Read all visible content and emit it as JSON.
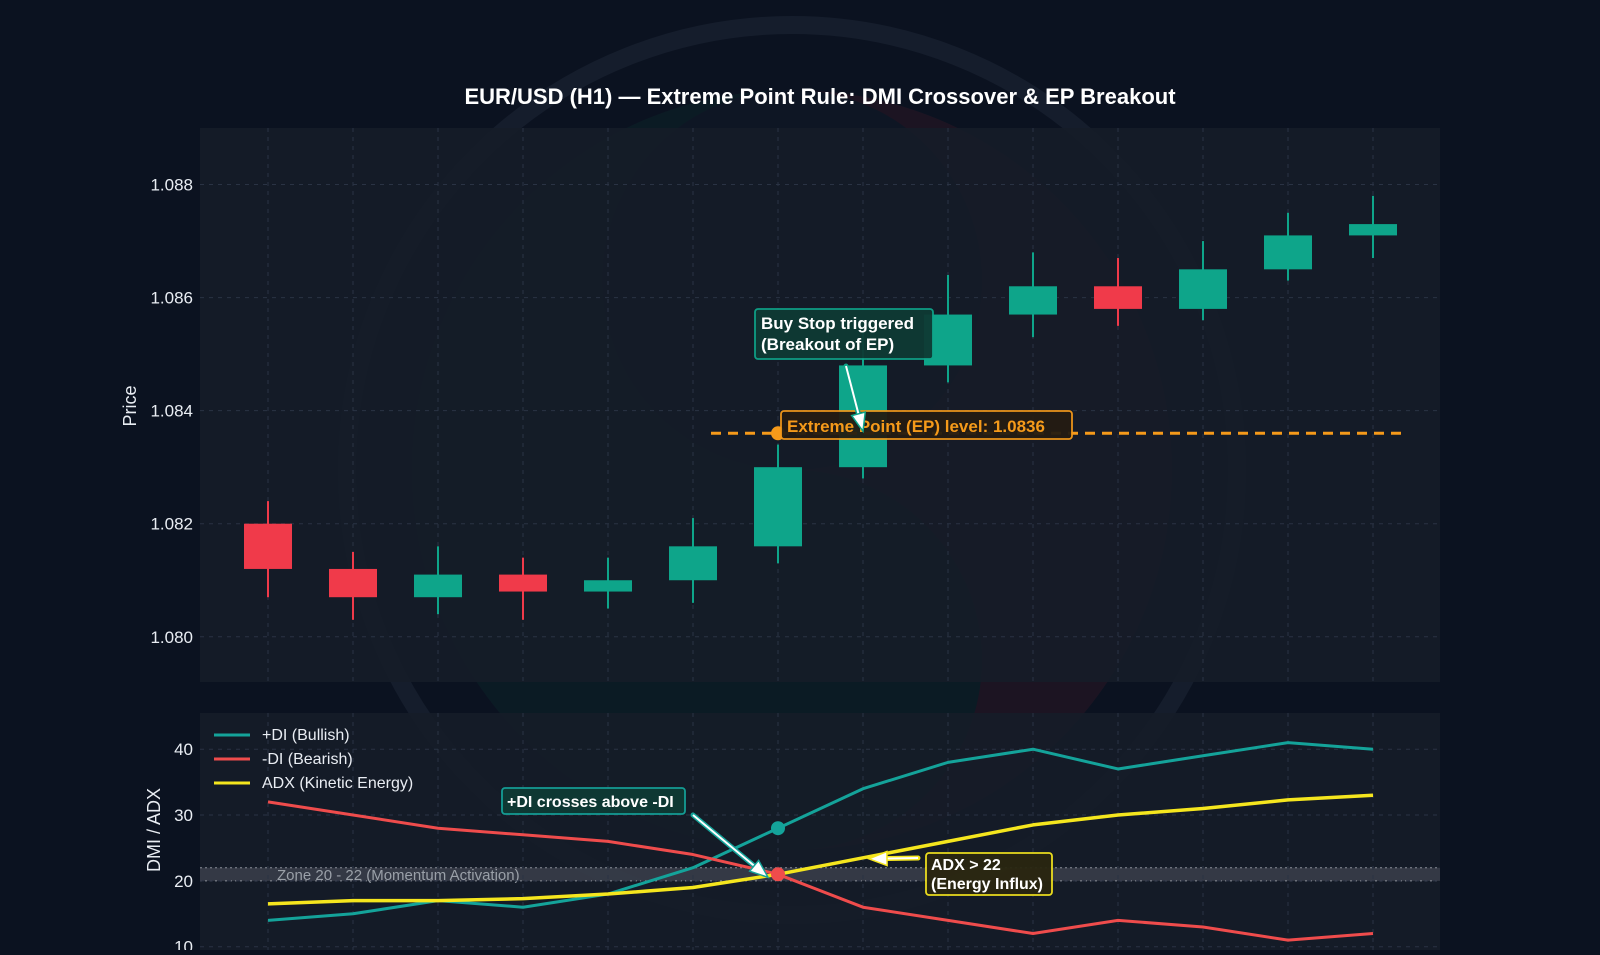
{
  "colors": {
    "page_bg": "#0b1220",
    "panel_bg": "#161c28",
    "bull": "#0ea58a",
    "bear": "#f03a4a",
    "plus_di": "#14a39a",
    "minus_di": "#ef4c4c",
    "adx": "#f5e61e",
    "ep": "#f59a1a",
    "text": "#e9edf3",
    "grid": "#2a3344"
  },
  "chart_data": [
    {
      "type": "candlestick",
      "title": "EUR/USD (H1) — Extreme Point Rule: DMI Crossover & EP Breakout",
      "ylabel": "Price",
      "ylim": [
        1.0792,
        1.089
      ],
      "yticks": [
        "1.080",
        "1.082",
        "1.084",
        "1.086",
        "1.088"
      ],
      "ytick_values": [
        1.08,
        1.082,
        1.084,
        1.086,
        1.088
      ],
      "x": [
        1,
        2,
        3,
        4,
        5,
        6,
        7,
        8,
        9,
        10,
        11,
        12,
        13,
        14
      ],
      "candles": [
        {
          "open": 1.082,
          "high": 1.0824,
          "low": 1.0807,
          "close": 1.0812
        },
        {
          "open": 1.0812,
          "high": 1.0815,
          "low": 1.0803,
          "close": 1.0807
        },
        {
          "open": 1.0807,
          "high": 1.0816,
          "low": 1.0804,
          "close": 1.0811
        },
        {
          "open": 1.0811,
          "high": 1.0814,
          "low": 1.0803,
          "close": 1.0808
        },
        {
          "open": 1.0808,
          "high": 1.0814,
          "low": 1.0805,
          "close": 1.081
        },
        {
          "open": 1.081,
          "high": 1.0821,
          "low": 1.0806,
          "close": 1.0816
        },
        {
          "open": 1.0816,
          "high": 1.0834,
          "low": 1.0813,
          "close": 1.083
        },
        {
          "open": 1.083,
          "high": 1.0854,
          "low": 1.0828,
          "close": 1.0848
        },
        {
          "open": 1.0848,
          "high": 1.0864,
          "low": 1.0845,
          "close": 1.0857
        },
        {
          "open": 1.0857,
          "high": 1.0868,
          "low": 1.0853,
          "close": 1.0862
        },
        {
          "open": 1.0862,
          "high": 1.0867,
          "low": 1.0855,
          "close": 1.0858
        },
        {
          "open": 1.0858,
          "high": 1.087,
          "low": 1.0856,
          "close": 1.0865
        },
        {
          "open": 1.0865,
          "high": 1.0875,
          "low": 1.0863,
          "close": 1.0871
        },
        {
          "open": 1.0871,
          "high": 1.0878,
          "low": 1.0867,
          "close": 1.0873
        }
      ],
      "ep_level": 1.0836,
      "ep_line_x": [
        6,
        14.5
      ],
      "annotations": {
        "ep_label": "Extreme Point (EP) level: 1.0836",
        "ep_point": {
          "x": 7,
          "y": 1.0836
        },
        "buy_stop": "Buy Stop triggered\n(Breakout of EP)",
        "buy_stop_target": {
          "x": 8,
          "y": 1.0836
        }
      },
      "grid": true
    },
    {
      "type": "line",
      "ylabel": "DMI / ADX",
      "ylim": [
        9.5,
        45.5
      ],
      "yticks": [
        "10",
        "20",
        "30",
        "40"
      ],
      "ytick_values": [
        10,
        20,
        30,
        40
      ],
      "x": [
        1,
        2,
        3,
        4,
        5,
        6,
        7,
        8,
        9,
        10,
        11,
        12,
        13,
        14
      ],
      "series": [
        {
          "name": "+DI (Bullish)",
          "color": "#14a39a",
          "values": [
            14,
            15,
            17,
            16,
            18,
            22,
            28,
            34,
            38,
            40,
            37,
            39,
            41,
            40
          ]
        },
        {
          "name": "-DI (Bearish)",
          "color": "#ef4c4c",
          "values": [
            32,
            30,
            28,
            27,
            26,
            24,
            21,
            16,
            14,
            12,
            14,
            13,
            11,
            12
          ]
        },
        {
          "name": "ADX (Kinetic Energy)",
          "color": "#f5e61e",
          "values": [
            16.5,
            17,
            17,
            17.3,
            18,
            19,
            21,
            23.5,
            26,
            28.5,
            30,
            31,
            32.3,
            33
          ]
        }
      ],
      "zone": {
        "from": 20,
        "to": 22,
        "label": "Zone 20 - 22 (Momentum Activation)"
      },
      "annotations": {
        "crossover_label": "+DI crosses above -DI",
        "crossover_point": {
          "x": 7,
          "y": 21
        },
        "plus_di_point": {
          "x": 7,
          "y": 28
        },
        "adx_label": "ADX > 22\n(Energy Influx)",
        "adx_target": {
          "x": 8,
          "y": 23.5
        }
      },
      "legend_position": "top-left",
      "grid": true
    }
  ]
}
